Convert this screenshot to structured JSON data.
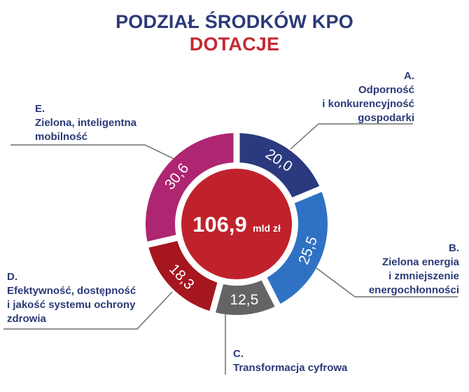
{
  "title": {
    "main": "PODZIAŁ ŚRODKÓW KPO",
    "sub": "DOTACJE"
  },
  "center": {
    "value": "106,9",
    "unit": "mld zł",
    "color": "#c0222c"
  },
  "segments": [
    {
      "key": "A",
      "value_label": "20,0",
      "color": "#2b3a7e",
      "label_lines": [
        "A.",
        "Odporność",
        "i konkurencyjność",
        "gospodarki"
      ]
    },
    {
      "key": "B",
      "value_label": "25,5",
      "color": "#2f72c4",
      "label_lines": [
        "B.",
        "Zielona energia",
        "i zmniejszenie",
        "energochłonności"
      ]
    },
    {
      "key": "C",
      "value_label": "12,5",
      "color": "#646464",
      "label_lines": [
        "C.",
        "Transformacja cyfrowa"
      ]
    },
    {
      "key": "D",
      "value_label": "18,3",
      "color": "#a5161f",
      "label_lines": [
        "D.",
        "Efektywność, dostępność",
        "i jakość systemu ochrony",
        "zdrowia"
      ]
    },
    {
      "key": "E",
      "value_label": "30,6",
      "color": "#ae2571",
      "label_lines": [
        "E.",
        "Zielona, inteligentna",
        "mobilność"
      ]
    }
  ],
  "chart_data": {
    "type": "pie",
    "variant": "donut",
    "title": "PODZIAŁ ŚRODKÓW KPO",
    "subtitle": "DOTACJE",
    "center_label": "106,9 mld zł",
    "total": 106.9,
    "unit": "mld zł",
    "categories": [
      "A. Odporność i konkurencyjność gospodarki",
      "B. Zielona energia i zmniejszenie energochłonności",
      "C. Transformacja cyfrowa",
      "D. Efektywność, dostępność i jakość systemu ochrony zdrowia",
      "E. Zielona, inteligentna mobilność"
    ],
    "values": [
      20.0,
      25.5,
      12.5,
      18.3,
      30.6
    ],
    "colors": [
      "#2b3a7e",
      "#2f72c4",
      "#646464",
      "#a5161f",
      "#ae2571"
    ],
    "start_angle": "12 o'clock",
    "direction": "clockwise",
    "legend_position": "leader-line callouts around donut"
  }
}
